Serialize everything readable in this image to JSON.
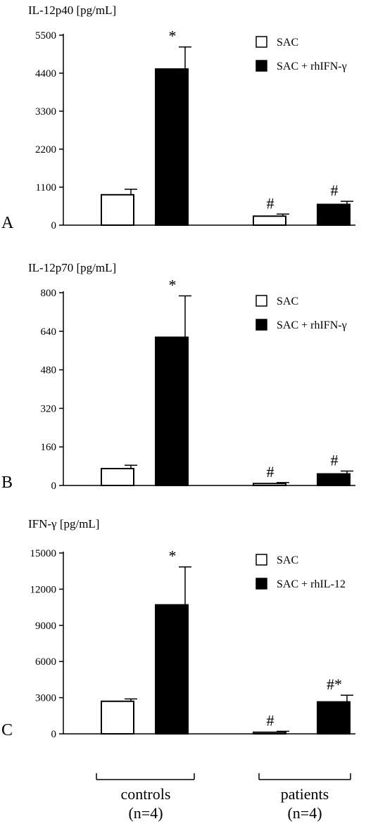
{
  "chart_data": [
    {
      "type": "bar",
      "panel_label": "A",
      "ylabel": "IL-12p40 [pg/mL]",
      "yticks": [
        0,
        1100,
        2200,
        3300,
        4400,
        5500
      ],
      "ylim": [
        0,
        5500
      ],
      "categories": [
        "controls",
        "patients"
      ],
      "series": [
        {
          "name": "SAC",
          "fill": "white",
          "values": [
            880,
            260
          ],
          "errors": [
            160,
            60
          ],
          "marks": [
            "",
            "#"
          ]
        },
        {
          "name": "SAC + rhIFN-γ",
          "fill": "black",
          "values": [
            4520,
            600
          ],
          "errors": [
            640,
            90
          ],
          "marks": [
            "*",
            "#"
          ]
        }
      ],
      "legend_position": "top-right"
    },
    {
      "type": "bar",
      "panel_label": "B",
      "ylabel": "IL-12p70 [pg/mL]",
      "yticks": [
        0,
        160,
        320,
        480,
        640,
        800
      ],
      "ylim": [
        0,
        800
      ],
      "categories": [
        "controls",
        "patients"
      ],
      "series": [
        {
          "name": "SAC",
          "fill": "white",
          "values": [
            70,
            8
          ],
          "errors": [
            14,
            4
          ],
          "marks": [
            "",
            "#"
          ]
        },
        {
          "name": "SAC + rhIFN-γ",
          "fill": "black",
          "values": [
            615,
            48
          ],
          "errors": [
            172,
            12
          ],
          "marks": [
            "*",
            "#"
          ]
        }
      ],
      "legend_position": "top-right"
    },
    {
      "type": "bar",
      "panel_label": "C",
      "ylabel": "IFN-γ [pg/mL]",
      "yticks": [
        0,
        3000,
        6000,
        9000,
        12000,
        15000
      ],
      "ylim": [
        0,
        15000
      ],
      "categories": [
        "controls",
        "patients"
      ],
      "series": [
        {
          "name": "SAC",
          "fill": "white",
          "values": [
            2700,
            130
          ],
          "errors": [
            200,
            80
          ],
          "marks": [
            "",
            "#"
          ]
        },
        {
          "name": "SAC + rhIL-12",
          "fill": "black",
          "values": [
            10700,
            2650
          ],
          "errors": [
            3150,
            550
          ],
          "marks": [
            "*",
            "#*"
          ]
        }
      ],
      "legend_position": "top-right"
    }
  ],
  "groups": [
    {
      "label": "controls",
      "n": "(n=4)"
    },
    {
      "label": "patients",
      "n": "(n=4)"
    }
  ]
}
